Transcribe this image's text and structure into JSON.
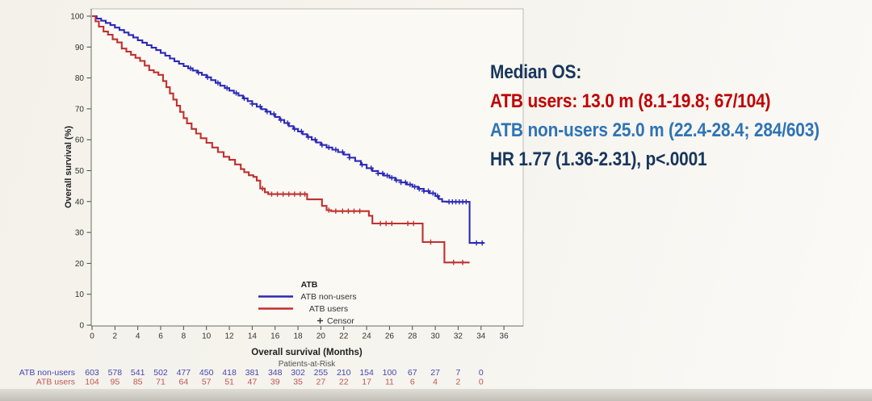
{
  "annotation": {
    "title": "Median OS:",
    "users_line": "ATB users: 13.0 m (8.1-19.8; 67/104)",
    "nonusers_line": "ATB non-users 25.0 m (22.4-28.4; 284/603)",
    "hr_line": "HR 1.77 (1.36-2.31), p<.0001",
    "title_color": "#17365d",
    "users_color": "#c00000",
    "nonusers_color": "#2e74b5",
    "hr_color": "#17365d"
  },
  "chart_data": {
    "type": "line",
    "variant": "kaplan-meier-step",
    "title": "",
    "xlabel": "Overall survival (Months)",
    "ylabel": "Overall survival (%)",
    "xlim": [
      0,
      36
    ],
    "ylim": [
      0,
      100
    ],
    "xticks": [
      0,
      2,
      4,
      6,
      8,
      10,
      12,
      14,
      16,
      18,
      20,
      22,
      24,
      26,
      28,
      30,
      32,
      34,
      36
    ],
    "yticks": [
      0,
      10,
      20,
      30,
      40,
      50,
      60,
      70,
      80,
      90,
      100
    ],
    "grid": false,
    "legend": {
      "title": "ATB",
      "position": "inside-bottom-center",
      "censor_label": "Censor",
      "entries": [
        {
          "label": "ATB non-users",
          "color": "#2a2ab8"
        },
        {
          "label": "ATB users",
          "color": "#c03030"
        }
      ]
    },
    "series": [
      {
        "name": "ATB non-users",
        "color": "#2a2ab8",
        "steps": [
          [
            0,
            100
          ],
          [
            0.4,
            99.2
          ],
          [
            0.8,
            98.5
          ],
          [
            1.2,
            97.8
          ],
          [
            1.6,
            97.1
          ],
          [
            2,
            96.3
          ],
          [
            2.4,
            95.5
          ],
          [
            2.8,
            94.7
          ],
          [
            3.2,
            93.9
          ],
          [
            3.6,
            93.1
          ],
          [
            4,
            92.2
          ],
          [
            4.4,
            91.4
          ],
          [
            4.8,
            90.6
          ],
          [
            5.2,
            89.8
          ],
          [
            5.6,
            89
          ],
          [
            6,
            88.1
          ],
          [
            6.4,
            87.2
          ],
          [
            6.8,
            86.3
          ],
          [
            7.2,
            85.4
          ],
          [
            7.6,
            84.6
          ],
          [
            8,
            83.8
          ],
          [
            8.4,
            83.1
          ],
          [
            8.8,
            82.4
          ],
          [
            9.2,
            81.7
          ],
          [
            9.6,
            81
          ],
          [
            10,
            80.2
          ],
          [
            10.4,
            79.3
          ],
          [
            10.8,
            78.4
          ],
          [
            11.2,
            77.5
          ],
          [
            11.6,
            76.7
          ],
          [
            12,
            75.9
          ],
          [
            12.4,
            75.1
          ],
          [
            12.8,
            74.3
          ],
          [
            13.2,
            73.4
          ],
          [
            13.6,
            72.5
          ],
          [
            14,
            71.6
          ],
          [
            14.4,
            70.7
          ],
          [
            14.8,
            69.9
          ],
          [
            15.2,
            69.1
          ],
          [
            15.6,
            68.3
          ],
          [
            16,
            67.4
          ],
          [
            16.4,
            66.4
          ],
          [
            16.8,
            65.4
          ],
          [
            17.2,
            64.4
          ],
          [
            17.6,
            63.5
          ],
          [
            18,
            62.7
          ],
          [
            18.4,
            61.8
          ],
          [
            18.8,
            60.9
          ],
          [
            19.2,
            60
          ],
          [
            19.6,
            59.1
          ],
          [
            20,
            58.3
          ],
          [
            20.5,
            57.5
          ],
          [
            21,
            56.8
          ],
          [
            21.5,
            56
          ],
          [
            22,
            55.2
          ],
          [
            22.5,
            54.2
          ],
          [
            23,
            53.1
          ],
          [
            23.5,
            51.9
          ],
          [
            24,
            50.8
          ],
          [
            24.5,
            49.9
          ],
          [
            25,
            49.1
          ],
          [
            25.5,
            48.4
          ],
          [
            26,
            47.7
          ],
          [
            26.5,
            46.9
          ],
          [
            27,
            46.2
          ],
          [
            27.5,
            45.5
          ],
          [
            28,
            44.8
          ],
          [
            28.5,
            44.1
          ],
          [
            29,
            43.4
          ],
          [
            29.5,
            42.7
          ],
          [
            30,
            41.8
          ],
          [
            30.3,
            40.8
          ],
          [
            30.6,
            40
          ],
          [
            31,
            39.9
          ],
          [
            33,
            39.9
          ],
          [
            33,
            26.6
          ],
          [
            34.3,
            26.6
          ]
        ],
        "censor_months": [
          8.6,
          9.3,
          10.1,
          11,
          11.8,
          12.6,
          13.3,
          14,
          14.7,
          15.3,
          15.9,
          16.5,
          17.1,
          17.7,
          18.3,
          18.9,
          19.5,
          20.1,
          20.7,
          21.3,
          21.9,
          22.5,
          23.6,
          24.4,
          25,
          25.4,
          25.8,
          26.2,
          26.6,
          27,
          27.4,
          27.8,
          28.2,
          28.6,
          29,
          29.4,
          29.8,
          30.2,
          31.2,
          31.5,
          31.8,
          32.1,
          32.4,
          32.7,
          33.6,
          34.1
        ]
      },
      {
        "name": "ATB users",
        "color": "#c03030",
        "steps": [
          [
            0,
            100
          ],
          [
            0.3,
            98.3
          ],
          [
            0.6,
            96.6
          ],
          [
            1,
            95
          ],
          [
            1.4,
            94
          ],
          [
            1.8,
            92.5
          ],
          [
            2.2,
            91.5
          ],
          [
            2.6,
            89.5
          ],
          [
            3,
            88.5
          ],
          [
            3.4,
            87.5
          ],
          [
            3.8,
            86.5
          ],
          [
            4.2,
            85.5
          ],
          [
            4.6,
            84
          ],
          [
            5,
            82.5
          ],
          [
            5.4,
            81.8
          ],
          [
            5.8,
            81
          ],
          [
            6.2,
            79
          ],
          [
            6.5,
            77
          ],
          [
            6.8,
            75
          ],
          [
            7.1,
            73
          ],
          [
            7.4,
            71
          ],
          [
            7.7,
            69
          ],
          [
            8,
            67
          ],
          [
            8.3,
            65.3
          ],
          [
            8.7,
            63.5
          ],
          [
            9.1,
            62
          ],
          [
            9.5,
            60.5
          ],
          [
            10,
            59
          ],
          [
            10.5,
            57.5
          ],
          [
            11,
            56
          ],
          [
            11.5,
            54.5
          ],
          [
            12,
            53.5
          ],
          [
            12.5,
            52
          ],
          [
            13,
            50.5
          ],
          [
            13.3,
            49.5
          ],
          [
            13.7,
            48.5
          ],
          [
            14.1,
            48
          ],
          [
            14.4,
            46.8
          ],
          [
            14.7,
            44.2
          ],
          [
            15.1,
            43
          ],
          [
            15.4,
            42.4
          ],
          [
            18.8,
            42.4
          ],
          [
            18.8,
            40.7
          ],
          [
            20,
            40.7
          ],
          [
            20.1,
            38.6
          ],
          [
            20.5,
            37.2
          ],
          [
            20.9,
            36.9
          ],
          [
            24.1,
            36.9
          ],
          [
            24.2,
            35.4
          ],
          [
            24.5,
            32.9
          ],
          [
            28.9,
            32.9
          ],
          [
            28.9,
            26.9
          ],
          [
            30.8,
            26.9
          ],
          [
            30.8,
            20.3
          ],
          [
            33,
            20.3
          ]
        ],
        "censor_months": [
          14.9,
          15.7,
          16.2,
          16.7,
          17.2,
          17.7,
          18.2,
          18.6,
          20.7,
          21.3,
          21.9,
          22.4,
          22.9,
          23.4,
          25.2,
          25.7,
          26.2,
          27.6,
          28.1,
          29.6,
          31.6,
          32.4
        ]
      }
    ],
    "at_risk_table": {
      "title": "Patients-at-Risk",
      "months": [
        0,
        2,
        4,
        6,
        8,
        10,
        12,
        14,
        16,
        18,
        20,
        22,
        24,
        26,
        28,
        30,
        32,
        34
      ],
      "rows": [
        {
          "label": "ATB non-users",
          "color": "#4646b4",
          "counts": [
            603,
            578,
            541,
            502,
            477,
            450,
            418,
            381,
            348,
            302,
            255,
            210,
            154,
            100,
            67,
            27,
            7,
            0
          ]
        },
        {
          "label": "ATB users",
          "color": "#c25555",
          "counts": [
            104,
            95,
            85,
            71,
            64,
            57,
            51,
            47,
            39,
            35,
            27,
            22,
            17,
            11,
            6,
            4,
            2,
            0
          ]
        }
      ]
    }
  }
}
